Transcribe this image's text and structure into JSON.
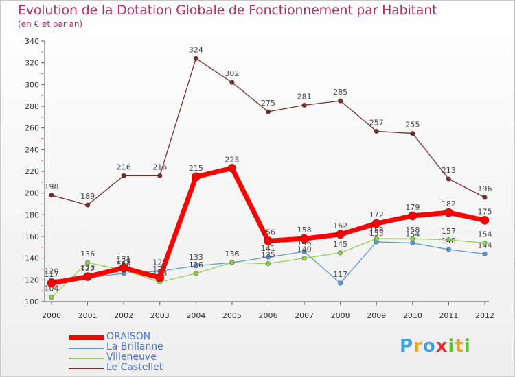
{
  "chart_data": {
    "type": "line",
    "title": "Evolution de la Dotation Globale de Fonctionnement par Habitant",
    "subtitle": "(en € et par an)",
    "xlabel": "",
    "ylabel": "",
    "x": [
      "2000",
      "2001",
      "2002",
      "2003",
      "2004",
      "2005",
      "2006",
      "2007",
      "2008",
      "2009",
      "2010",
      "2011",
      "2012"
    ],
    "ylim": [
      100,
      340
    ],
    "yticks": [
      100,
      120,
      140,
      160,
      180,
      200,
      220,
      240,
      260,
      280,
      300,
      320,
      340
    ],
    "grid": false,
    "legend": "bottom-left",
    "series": [
      {
        "name": "La Brillanne",
        "color": "#5b9bd5",
        "values": [
          120,
          122,
          126,
          128,
          133,
          136,
          141,
          146,
          117,
          155,
          154,
          148,
          144
        ]
      },
      {
        "name": "Villeneuve",
        "color": "#8fd14f",
        "values": [
          104,
          136,
          129,
          118,
          126,
          136,
          135,
          140,
          145,
          158,
          158,
          157,
          154
        ]
      },
      {
        "name": "Le Castellet",
        "color": "#7a2e2e",
        "values": [
          198,
          189,
          216,
          216,
          324,
          302,
          275,
          281,
          285,
          257,
          255,
          213,
          196
        ]
      },
      {
        "name": "ORAISON",
        "color": "#ff0000",
        "values": [
          117,
          123,
          131,
          122,
          215,
          223,
          156,
          158,
          162,
          172,
          179,
          182,
          175
        ]
      }
    ],
    "legend_entries": [
      "ORAISON",
      "La Brillanne",
      "Villeneuve",
      "Le Castellet"
    ]
  },
  "colors": {
    "title": "#b03060",
    "legend_text": "#4a6fd0"
  },
  "logo": {
    "letters": [
      "P",
      "r",
      "o",
      "x",
      "i",
      "t",
      "i"
    ],
    "colors": [
      "#3aa0e0",
      "#f0a020",
      "#3aa0e0",
      "#e03030",
      "#60c030",
      "#f0a020",
      "#60c030"
    ]
  }
}
